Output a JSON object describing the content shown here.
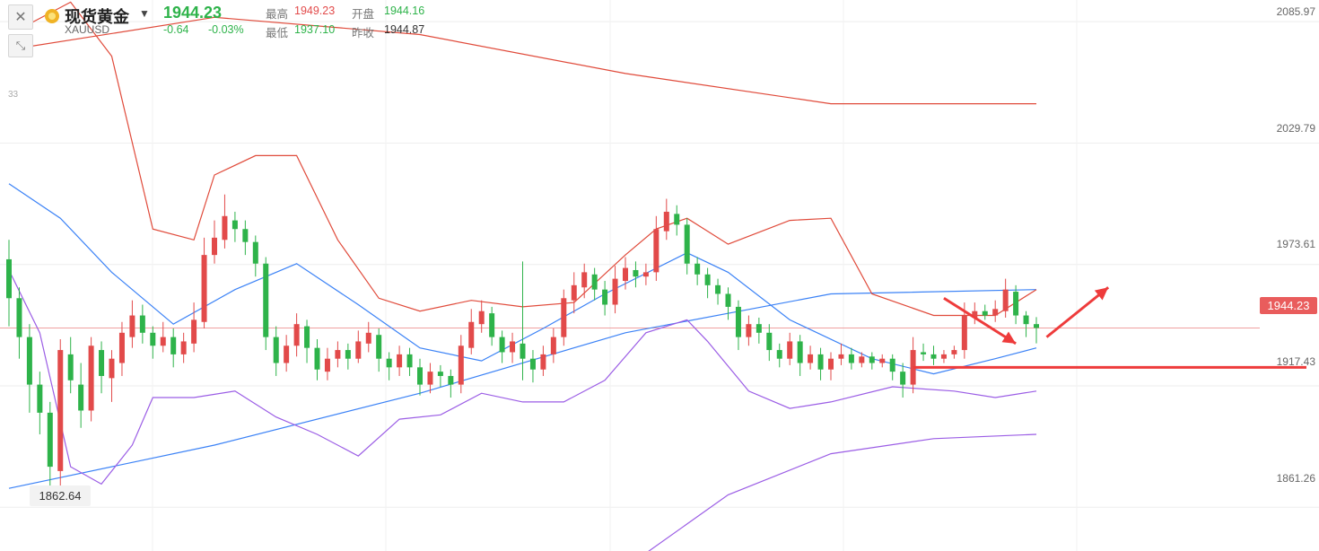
{
  "header": {
    "name": "现货黄金",
    "symbol": "XAUUSD",
    "last": "1944.23",
    "change": "-0.64",
    "change_pct": "-0.03%",
    "high_label": "最高",
    "high": "1949.23",
    "open_label": "开盘",
    "open": "1944.16",
    "low_label": "最低",
    "low": "1937.10",
    "prev_label": "昨收",
    "prev": "1944.87"
  },
  "toolbar": {
    "badge": "33"
  },
  "labels": {
    "last_price_tag": "1944.23",
    "min_tag": "1862.64"
  },
  "colors": {
    "up": "#e24a4a",
    "down": "#2eb34a",
    "ma_blue": "#3b82f6",
    "boll_red": "#e04a3a",
    "boll_purple": "#9b5de5",
    "arrow": "#ee3b3b"
  },
  "chart_data": {
    "type": "candlestick",
    "y_ticks": [
      "2085.97",
      "2029.79",
      "1973.61",
      "1917.43",
      "1861.26"
    ],
    "ylim": [
      1841,
      2096
    ],
    "candles": [
      [
        1976,
        1958,
        1985,
        1945
      ],
      [
        1958,
        1940,
        1963,
        1930
      ],
      [
        1940,
        1918,
        1946,
        1905
      ],
      [
        1918,
        1905,
        1924,
        1895
      ],
      [
        1905,
        1880,
        1910,
        1862.64
      ],
      [
        1878,
        1934,
        1939,
        1870
      ],
      [
        1932,
        1920,
        1940,
        1914
      ],
      [
        1918,
        1906,
        1928,
        1898
      ],
      [
        1906,
        1936,
        1940,
        1901
      ],
      [
        1934,
        1922,
        1938,
        1914
      ],
      [
        1921,
        1930,
        1934,
        1910
      ],
      [
        1928,
        1942,
        1947,
        1922
      ],
      [
        1940,
        1950,
        1957,
        1935
      ],
      [
        1950,
        1942,
        1955,
        1937
      ],
      [
        1942,
        1936,
        1945,
        1930
      ],
      [
        1936,
        1940,
        1947,
        1933
      ],
      [
        1940,
        1932,
        1944,
        1926
      ],
      [
        1932,
        1938,
        1942,
        1928
      ],
      [
        1937,
        1948,
        1956,
        1933
      ],
      [
        1947,
        1978,
        1986,
        1944
      ],
      [
        1978,
        1986,
        1994,
        1974
      ],
      [
        1985,
        1996,
        2006,
        1981
      ],
      [
        1994,
        1990,
        1998,
        1984
      ],
      [
        1990,
        1984,
        1994,
        1978
      ],
      [
        1984,
        1974,
        1987,
        1968
      ],
      [
        1974,
        1940,
        1977,
        1934
      ],
      [
        1940,
        1928,
        1945,
        1922
      ],
      [
        1928,
        1936,
        1941,
        1924
      ],
      [
        1936,
        1946,
        1951,
        1931
      ],
      [
        1945,
        1935,
        1948,
        1928
      ],
      [
        1935,
        1925,
        1939,
        1920
      ],
      [
        1924,
        1930,
        1935,
        1920
      ],
      [
        1930,
        1934,
        1938,
        1926
      ],
      [
        1934,
        1930,
        1937,
        1925
      ],
      [
        1930,
        1938,
        1943,
        1928
      ],
      [
        1937,
        1942,
        1947,
        1933
      ],
      [
        1941,
        1930,
        1944,
        1924
      ],
      [
        1930,
        1926,
        1933,
        1920
      ],
      [
        1926,
        1932,
        1936,
        1922
      ],
      [
        1932,
        1926,
        1935,
        1922
      ],
      [
        1926,
        1918,
        1930,
        1913
      ],
      [
        1918,
        1924,
        1928,
        1914
      ],
      [
        1924,
        1922,
        1927,
        1917
      ],
      [
        1922,
        1918,
        1925,
        1912
      ],
      [
        1918,
        1936,
        1941,
        1914
      ],
      [
        1935,
        1947,
        1953,
        1932
      ],
      [
        1946,
        1952,
        1957,
        1942
      ],
      [
        1951,
        1940,
        1954,
        1936
      ],
      [
        1940,
        1933,
        1943,
        1928
      ],
      [
        1933,
        1938,
        1942,
        1928
      ],
      [
        1937,
        1930,
        1975,
        1920
      ],
      [
        1930,
        1925,
        1934,
        1919
      ],
      [
        1925,
        1932,
        1936,
        1922
      ],
      [
        1932,
        1940,
        1944,
        1928
      ],
      [
        1940,
        1958,
        1962,
        1936
      ],
      [
        1957,
        1964,
        1970,
        1951
      ],
      [
        1963,
        1970,
        1974,
        1958
      ],
      [
        1969,
        1962,
        1972,
        1957
      ],
      [
        1962,
        1955,
        1966,
        1950
      ],
      [
        1955,
        1967,
        1973,
        1951
      ],
      [
        1966,
        1972,
        1977,
        1962
      ],
      [
        1971,
        1968,
        1975,
        1963
      ],
      [
        1968,
        1970,
        1974,
        1964
      ],
      [
        1970,
        1990,
        1996,
        1966
      ],
      [
        1989,
        1998,
        2004,
        1985
      ],
      [
        1997,
        1992,
        2001,
        1987
      ],
      [
        1992,
        1974,
        1995,
        1969
      ],
      [
        1974,
        1969,
        1977,
        1964
      ],
      [
        1969,
        1964,
        1972,
        1958
      ],
      [
        1964,
        1960,
        1967,
        1955
      ],
      [
        1960,
        1954,
        1963,
        1948
      ],
      [
        1954,
        1940,
        1957,
        1934
      ],
      [
        1940,
        1946,
        1950,
        1936
      ],
      [
        1946,
        1942,
        1949,
        1937
      ],
      [
        1942,
        1934,
        1946,
        1929
      ],
      [
        1934,
        1930,
        1937,
        1926
      ],
      [
        1930,
        1938,
        1942,
        1927
      ],
      [
        1938,
        1928,
        1941,
        1922
      ],
      [
        1928,
        1932,
        1936,
        1925
      ],
      [
        1932,
        1925,
        1935,
        1920
      ],
      [
        1925,
        1930,
        1933,
        1920
      ],
      [
        1930,
        1932,
        1937,
        1927
      ],
      [
        1932,
        1928,
        1935,
        1925
      ],
      [
        1928,
        1931,
        1933,
        1926
      ],
      [
        1931,
        1928,
        1933,
        1925
      ],
      [
        1928,
        1930,
        1932,
        1926
      ],
      [
        1930,
        1924,
        1932,
        1920
      ],
      [
        1924,
        1918,
        1928,
        1912
      ],
      [
        1918,
        1934,
        1940,
        1914
      ],
      [
        1933,
        1932,
        1937,
        1929
      ],
      [
        1932,
        1930,
        1936,
        1927
      ],
      [
        1930,
        1932,
        1934,
        1928
      ],
      [
        1932,
        1934,
        1936,
        1930
      ],
      [
        1934,
        1950,
        1956,
        1930
      ],
      [
        1949,
        1952,
        1956,
        1946
      ],
      [
        1952,
        1950,
        1955,
        1948
      ],
      [
        1950,
        1953,
        1957,
        1947
      ],
      [
        1952,
        1962,
        1967,
        1949
      ],
      [
        1961,
        1950,
        1964,
        1946
      ],
      [
        1950,
        1946,
        1952,
        1940
      ],
      [
        1946,
        1944.23,
        1949.23,
        1937.1
      ]
    ],
    "series": [
      {
        "name": "MA-blue",
        "color": "#3b82f6",
        "x": [
          0,
          5,
          10,
          16,
          22,
          28,
          34,
          40,
          46,
          52,
          58,
          66,
          70,
          76,
          84,
          90,
          96,
          100
        ],
        "y": [
          2011,
          1995,
          1970,
          1946,
          1962,
          1974,
          1955,
          1935,
          1929,
          1944,
          1960,
          1979,
          1970,
          1948,
          1930,
          1923,
          1930,
          1935
        ]
      },
      {
        "name": "MA-long",
        "color": "#3b82f6",
        "x": [
          0,
          20,
          40,
          60,
          80,
          100
        ],
        "y": [
          1870,
          1890,
          1914,
          1942,
          1960,
          1962
        ]
      },
      {
        "name": "BOLL-upper",
        "color": "#e04a3a",
        "x": [
          2,
          6,
          10,
          14,
          18,
          20,
          24,
          28,
          32,
          36,
          40,
          45,
          50,
          55,
          60,
          63,
          66,
          70,
          76,
          80,
          84,
          90,
          96,
          100
        ],
        "y": [
          2085,
          2095,
          2070,
          1990,
          1985,
          2015,
          2024,
          2024,
          1985,
          1958,
          1952,
          1957,
          1954,
          1956,
          1978,
          1990,
          1995,
          1983,
          1994,
          1995,
          1960,
          1950,
          1950,
          1962
        ]
      },
      {
        "name": "BOLL-lower",
        "color": "#9b5de5",
        "x": [
          0,
          3,
          6,
          9,
          12,
          14,
          18,
          22,
          26,
          30,
          34,
          38,
          42,
          46,
          50,
          54,
          58,
          62,
          66,
          68,
          72,
          76,
          80,
          86,
          92,
          96,
          100
        ],
        "y": [
          1971,
          1942,
          1880,
          1872,
          1890,
          1912,
          1912,
          1915,
          1903,
          1895,
          1885,
          1902,
          1904,
          1914,
          1910,
          1910,
          1920,
          1942,
          1948,
          1938,
          1915,
          1907,
          1910,
          1917,
          1915,
          1912,
          1915
        ]
      },
      {
        "name": "MID-red",
        "color": "#e04a3a",
        "x": [
          0,
          20,
          40,
          60,
          80,
          100
        ],
        "y": [
          2073,
          2088,
          2080,
          2062,
          2048,
          2048
        ]
      },
      {
        "name": "MID-purple",
        "color": "#9b5de5",
        "x": [
          62,
          70,
          80,
          90,
          100
        ],
        "y": [
          1840,
          1867,
          1886,
          1893,
          1895
        ]
      }
    ],
    "hline_red": 1926,
    "arrows": [
      {
        "from": [
          91,
          1958
        ],
        "to": [
          98,
          1937
        ]
      },
      {
        "from": [
          101,
          1940
        ],
        "to": [
          107,
          1963
        ]
      }
    ]
  }
}
